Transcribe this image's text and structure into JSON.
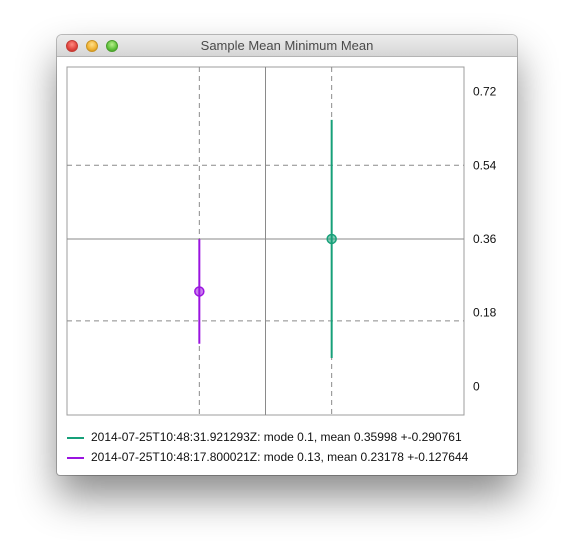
{
  "window": {
    "title": "Sample Mean Minimum Mean"
  },
  "chart_data": {
    "type": "scatter",
    "subtype": "error-bar",
    "x": [
      1,
      2
    ],
    "y_axis": {
      "ticks": [
        "0",
        "0.18",
        "0.36",
        "0.54",
        "0.72"
      ],
      "tick_values": [
        0,
        0.18,
        0.36,
        0.54,
        0.72
      ],
      "ylim": [
        -0.07,
        0.78
      ],
      "position": "right"
    },
    "x_axis": {
      "xlim": [
        0,
        3
      ]
    },
    "grid": true,
    "legend_placement": "bottom",
    "series": [
      {
        "name": "2014-07-25T10:48:31.921293Z: mode 0.1, mean 0.35998 +-0.290761",
        "x": 2,
        "mean": 0.35998,
        "error": 0.290761,
        "color": "#17a079"
      },
      {
        "name": "2014-07-25T10:48:17.800021Z: mode 0.13, mean 0.23178 +-0.127644",
        "x": 1,
        "mean": 0.23178,
        "error": 0.127644,
        "color": "#9a14e0"
      }
    ]
  }
}
